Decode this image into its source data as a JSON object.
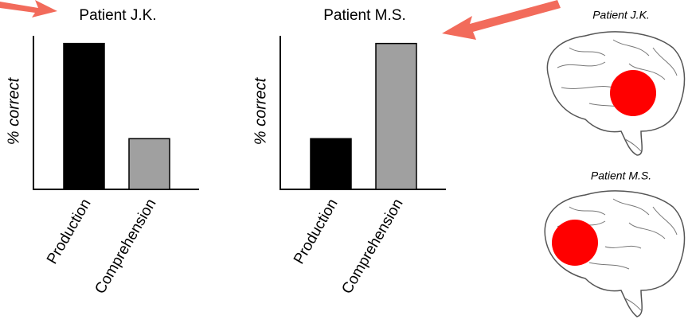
{
  "chart_data": [
    {
      "type": "bar",
      "title": "Patient J.K.",
      "ylabel": "% correct",
      "categories": [
        "Production",
        "Comprehension"
      ],
      "values": [
        95,
        33
      ],
      "colors": [
        "#000000",
        "#a0a0a0"
      ],
      "ylim": [
        0,
        100
      ]
    },
    {
      "type": "bar",
      "title": "Patient M.S.",
      "ylabel": "% correct",
      "categories": [
        "Production",
        "Comprehension"
      ],
      "values": [
        33,
        95
      ],
      "colors": [
        "#000000",
        "#a0a0a0"
      ],
      "ylim": [
        0,
        100
      ]
    }
  ],
  "brains": [
    {
      "label": "Patient J.K."
    },
    {
      "label": "Patient M.S."
    }
  ]
}
